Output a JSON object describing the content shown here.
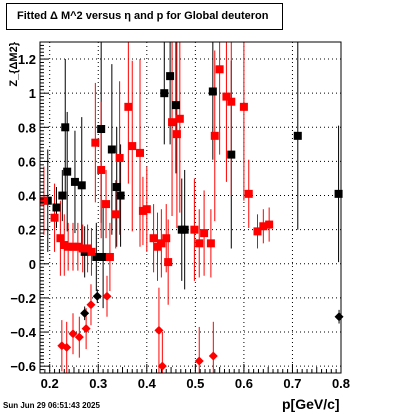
{
  "title_prefix": "Fitted ",
  "title_delta": "Δ",
  "title_mid": " M^2 versus ",
  "title_eta": "η",
  "title_suffix": " and p for Global deuteron",
  "ylabel": "Z_{ΔM2}",
  "xlabel": "p[GeV/c]",
  "timestamp": "Sun Jun 29 06:51:43 2025",
  "chart_data": {
    "type": "scatter",
    "xlim": [
      0.18,
      0.8
    ],
    "ylim": [
      -0.64,
      1.3
    ],
    "x_ticks": [
      0.2,
      0.3,
      0.4,
      0.5,
      0.6,
      0.7,
      0.8
    ],
    "x_tick_labels": [
      "0.2",
      "0.3",
      "0.4",
      "0.5",
      "0.6",
      "0.7",
      "0.8"
    ],
    "y_ticks": [
      -0.6,
      -0.4,
      -0.2,
      0,
      0.2,
      0.4,
      0.6,
      0.8,
      1,
      1.2
    ],
    "y_tick_labels": [
      "−0.6",
      "−0.4",
      "−0.2",
      "0",
      "0.2",
      "0.4",
      "0.6",
      "0.8",
      "1",
      "1.2"
    ],
    "grid": true,
    "series": [
      {
        "color": "#000000",
        "marker": "square",
        "points": [
          [
            0.196,
            0.37,
            0.3
          ],
          [
            0.214,
            0.33,
            0.12
          ],
          [
            0.226,
            0.4,
            0.15
          ],
          [
            0.232,
            0.8,
            0.4
          ],
          [
            0.236,
            0.54,
            0.35
          ],
          [
            0.252,
            0.48,
            0.3
          ],
          [
            0.266,
            0.46,
            0.4
          ],
          [
            0.272,
            0.07,
            0.15
          ],
          [
            0.296,
            0.04,
            0.2
          ],
          [
            0.306,
            0.79,
            0.55
          ],
          [
            0.31,
            0.04,
            0.3
          ],
          [
            0.328,
            0.67,
            0.5
          ],
          [
            0.338,
            0.45,
            0.35
          ],
          [
            0.346,
            0.4,
            0.3
          ],
          [
            0.436,
            1.0,
            0.3
          ],
          [
            0.448,
            1.1,
            0.4
          ],
          [
            0.46,
            0.93,
            0.4
          ],
          [
            0.472,
            0.2,
            0.3
          ],
          [
            0.478,
            0.2,
            0.35
          ],
          [
            0.536,
            1.01,
            0.4
          ],
          [
            0.574,
            0.64,
            0.55
          ],
          [
            0.711,
            0.75,
            0.55
          ],
          [
            0.795,
            0.41,
            0.4
          ]
        ]
      },
      {
        "color": "#000000",
        "marker": "diamond",
        "points": [
          [
            0.272,
            -0.29,
            0.04
          ],
          [
            0.298,
            -0.19,
            0.04
          ],
          [
            0.796,
            -0.31,
            0.04
          ]
        ]
      },
      {
        "color": "#ff0000",
        "marker": "square",
        "points": [
          [
            0.188,
            0.37,
            0.2
          ],
          [
            0.21,
            0.27,
            0.2
          ],
          [
            0.222,
            0.15,
            0.22
          ],
          [
            0.23,
            0.11,
            0.18
          ],
          [
            0.238,
            0.1,
            0.14
          ],
          [
            0.248,
            0.1,
            0.14
          ],
          [
            0.258,
            0.1,
            0.14
          ],
          [
            0.268,
            0.09,
            0.14
          ],
          [
            0.278,
            0.09,
            0.14
          ],
          [
            0.286,
            0.07,
            0.14
          ],
          [
            0.294,
            0.71,
            0.35
          ],
          [
            0.306,
            0.55,
            0.4
          ],
          [
            0.316,
            0.35,
            0.2
          ],
          [
            0.324,
            0.04,
            0.2
          ],
          [
            0.336,
            0.29,
            0.2
          ],
          [
            0.344,
            0.62,
            0.45
          ],
          [
            0.362,
            0.92,
            0.45
          ],
          [
            0.37,
            0.69,
            0.5
          ],
          [
            0.386,
            0.65,
            0.55
          ],
          [
            0.392,
            0.31,
            0.2
          ],
          [
            0.4,
            0.32,
            0.25
          ],
          [
            0.414,
            0.15,
            0.2
          ],
          [
            0.422,
            0.1,
            0.2
          ],
          [
            0.43,
            0.12,
            0.2
          ],
          [
            0.44,
            0.15,
            0.2
          ],
          [
            0.444,
            0.01,
            0.25
          ],
          [
            0.452,
            0.83,
            0.55
          ],
          [
            0.462,
            0.76,
            0.55
          ],
          [
            0.468,
            0.85,
            0.55
          ],
          [
            0.498,
            0.2,
            0.3
          ],
          [
            0.508,
            0.12,
            0.2
          ],
          [
            0.518,
            0.18,
            0.25
          ],
          [
            0.532,
            0.12,
            0.2
          ],
          [
            0.54,
            0.75,
            0.5
          ],
          [
            0.55,
            1.14,
            0.5
          ],
          [
            0.564,
            0.98,
            0.5
          ],
          [
            0.574,
            0.95,
            0.55
          ],
          [
            0.6,
            0.92,
            0.55
          ],
          [
            0.61,
            0.41,
            0.2
          ],
          [
            0.628,
            0.19,
            0.1
          ],
          [
            0.64,
            0.22,
            0.1
          ],
          [
            0.652,
            0.23,
            0.1
          ]
        ]
      },
      {
        "color": "#ff0000",
        "marker": "diamond",
        "points": [
          [
            0.225,
            -0.48,
            0.15
          ],
          [
            0.235,
            -0.49,
            0.15
          ],
          [
            0.248,
            -0.41,
            0.12
          ],
          [
            0.261,
            -0.43,
            0.12
          ],
          [
            0.275,
            -0.38,
            0.12
          ],
          [
            0.285,
            -0.24,
            0.12
          ],
          [
            0.318,
            -0.19,
            0.12
          ],
          [
            0.425,
            -0.39,
            0.25
          ],
          [
            0.432,
            -0.6,
            0.2
          ],
          [
            0.508,
            -0.57,
            0.2
          ],
          [
            0.537,
            -0.54,
            0.2
          ]
        ]
      }
    ]
  }
}
